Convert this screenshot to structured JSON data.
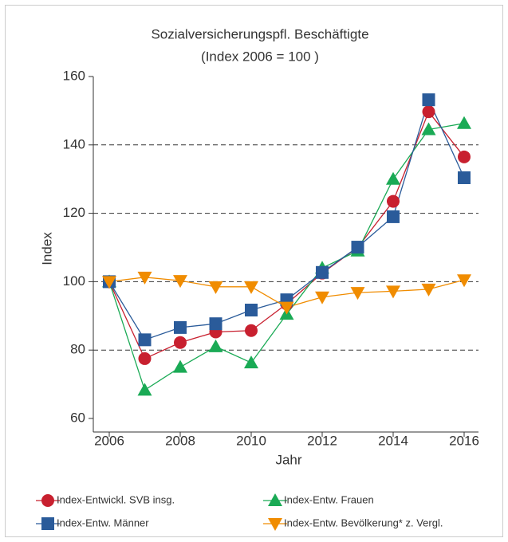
{
  "chart_data": {
    "type": "line",
    "title": "Sozialversicherungspfl. Beschäftigte",
    "subtitle": "(Index 2006 = 100 )",
    "x_label": "Jahr",
    "y_label": "Index",
    "x": [
      2006,
      2007,
      2008,
      2009,
      2010,
      2011,
      2012,
      2013,
      2014,
      2015,
      2016
    ],
    "xlim": [
      2006,
      2016
    ],
    "xticks": [
      2006,
      2008,
      2010,
      2012,
      2014,
      2016
    ],
    "ylim": [
      60,
      160
    ],
    "yticks": [
      60,
      80,
      100,
      120,
      140,
      160
    ],
    "grid": true,
    "legend": "bottom",
    "series": [
      {
        "name": "Index-Entwickl. SVB insg.",
        "color": "#c8202f",
        "marker": "circle",
        "values": [
          100,
          77.5,
          82.2,
          85.3,
          85.7,
          93.5,
          102.5,
          110,
          123.5,
          149.7,
          136.5
        ]
      },
      {
        "name": "Index-Entw. Frauen",
        "color": "#1aaa55",
        "marker": "triangle-up",
        "values": [
          100,
          68.3,
          75,
          81,
          76.3,
          90.5,
          104,
          109,
          130,
          144.5,
          146.3
        ]
      },
      {
        "name": "Index-Entw. Männer",
        "color": "#2a5b9a",
        "marker": "square",
        "values": [
          100,
          83,
          86.6,
          87.7,
          91.7,
          94.7,
          102.7,
          110.1,
          119,
          153.2,
          130.4
        ]
      },
      {
        "name": "Index-Entw. Bevölkerung* z. Vergl.",
        "color": "#f08c00",
        "marker": "triangle-down",
        "values": [
          100,
          101.3,
          100.3,
          98.5,
          98.5,
          92.5,
          95.5,
          96.8,
          97.2,
          97.8,
          100.5
        ]
      }
    ]
  }
}
